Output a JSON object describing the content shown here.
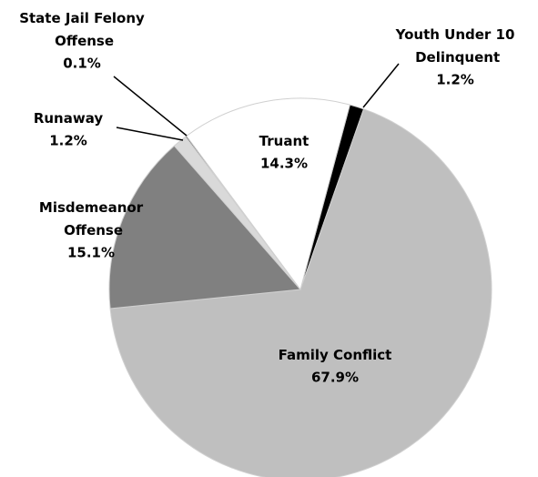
{
  "chart_data": {
    "type": "pie",
    "categories": [
      "Youth Under 10 Delinquent",
      "Family Conflict",
      "Misdemeanor Offense",
      "Runaway",
      "State Jail Felony Offense",
      "Truant"
    ],
    "values": [
      1.2,
      67.9,
      15.1,
      1.2,
      0.1,
      14.3
    ],
    "value_labels": [
      "1.2%",
      "67.9%",
      "15.1%",
      "1.2%",
      "0.1%",
      "14.3%"
    ],
    "colors": [
      "#000000",
      "#bfbfbf",
      "#808080",
      "#d9d9d9",
      "#000000",
      "#ffffff"
    ]
  }
}
